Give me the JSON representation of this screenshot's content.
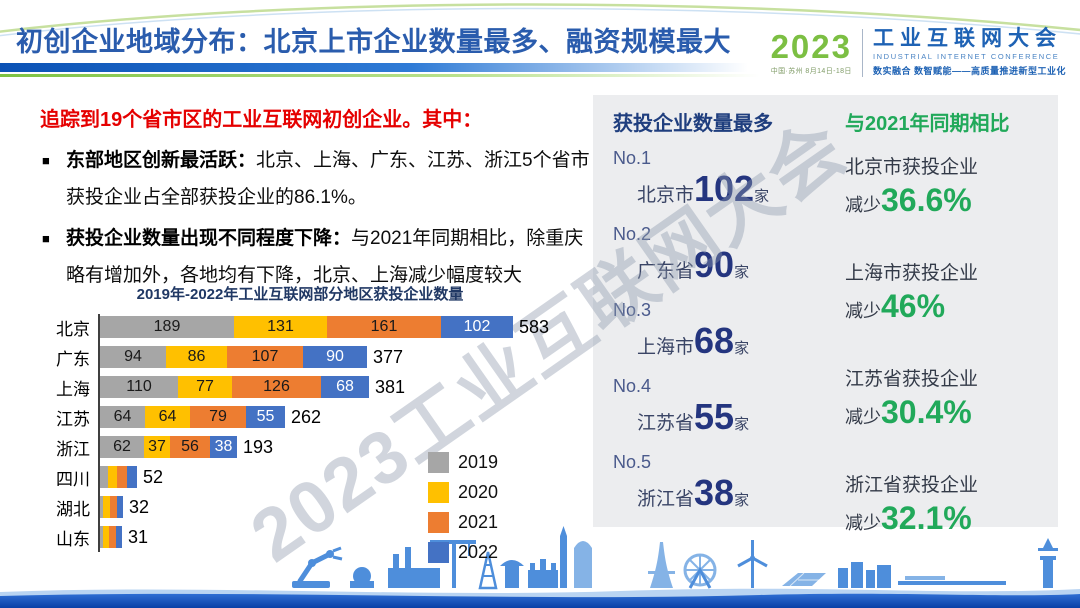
{
  "header": {
    "title": "初创企业地域分布：北京上市企业数量最多、融资规模最大",
    "logo": {
      "year": "2023",
      "venue": "中国·苏州 8月14日-18日",
      "name": "工业互联网大会",
      "name_en": "INDUSTRIAL INTERNET CONFERENCE",
      "slogan": "数实融合 数智赋能——高质量推进新型工业化"
    }
  },
  "body": {
    "heading": "追踪到19个省市区的工业互联网初创企业。其中：",
    "bullet_char": "■",
    "bullets": [
      {
        "lead": "东部地区创新最活跃：",
        "text": "北京、上海、广东、江苏、浙江5个省市获投企业占全部获投企业的86.1%。"
      },
      {
        "lead": "获投企业数量出现不同程度下降：",
        "text": "与2021年同期相比，除重庆略有增加外，各地均有下降，北京、上海减少幅度较大"
      }
    ]
  },
  "chart_data": {
    "type": "bar",
    "orientation": "horizontal",
    "stacked": true,
    "title": "2019年-2022年工业互联网部分地区获投企业数量",
    "categories": [
      "北京",
      "广东",
      "上海",
      "江苏",
      "浙江",
      "四川",
      "湖北",
      "山东"
    ],
    "series": [
      {
        "name": "2019",
        "color": "#A6A6A6",
        "values": [
          189,
          94,
          110,
          64,
          62,
          11,
          3,
          3
        ]
      },
      {
        "name": "2020",
        "color": "#FFC000",
        "values": [
          131,
          86,
          77,
          64,
          37,
          13,
          10,
          9
        ]
      },
      {
        "name": "2021",
        "color": "#ED7D31",
        "values": [
          161,
          107,
          126,
          79,
          56,
          14,
          10,
          10
        ]
      },
      {
        "name": "2022",
        "color": "#4472C4",
        "values": [
          102,
          90,
          68,
          55,
          38,
          14,
          9,
          9
        ]
      }
    ],
    "totals": [
      583,
      377,
      381,
      262,
      193,
      52,
      32,
      31
    ],
    "segment_labels_visible": [
      true,
      true,
      true,
      true,
      true,
      false,
      false,
      false
    ],
    "xlim": [
      0,
      600
    ],
    "grid": false,
    "legend_position": "inside-right"
  },
  "ranking": {
    "header": "获投企业数量最多",
    "items": [
      {
        "rank": "No.1",
        "region": "北京市",
        "count": "102",
        "unit": "家"
      },
      {
        "rank": "No.2",
        "region": "广东省",
        "count": "90",
        "unit": "家"
      },
      {
        "rank": "No.3",
        "region": "上海市",
        "count": "68",
        "unit": "家"
      },
      {
        "rank": "No.4",
        "region": "江苏省",
        "count": "55",
        "unit": "家"
      },
      {
        "rank": "No.5",
        "region": "浙江省",
        "count": "38",
        "unit": "家"
      }
    ]
  },
  "comparison": {
    "header": "与2021年同期相比",
    "items": [
      {
        "subject": "北京市获投企业",
        "verb": "减少",
        "value": "36.6%"
      },
      {
        "subject": "上海市获投企业",
        "verb": "减少",
        "value": "46%"
      },
      {
        "subject": "江苏省获投企业",
        "verb": "减少",
        "value": "30.4%"
      },
      {
        "subject": "浙江省获投企业",
        "verb": "减少",
        "value": "32.1%"
      }
    ]
  },
  "watermark": {
    "text": "2023工业互联网大会"
  },
  "colors": {
    "title_blue": "#2A5CAD",
    "accent_red": "#E50000",
    "navy": "#24357F",
    "green": "#21A95A",
    "panel_bg": "#ECEDEF",
    "bar_2019": "#A6A6A6",
    "bar_2020": "#FFC000",
    "bar_2021": "#ED7D31",
    "bar_2022": "#4472C4"
  }
}
